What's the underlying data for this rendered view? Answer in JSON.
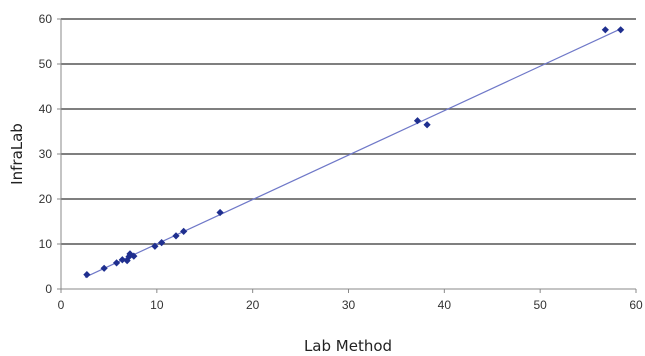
{
  "chart_data": {
    "type": "scatter",
    "title": "",
    "xlabel": "Lab Method",
    "ylabel": "InfraLab",
    "xlim": [
      0,
      60
    ],
    "ylim": [
      0,
      60
    ],
    "xticks": [
      0,
      10,
      20,
      30,
      40,
      50,
      60
    ],
    "yticks": [
      0,
      10,
      20,
      30,
      40,
      50,
      60
    ],
    "grid": "horizontal",
    "legend": "none",
    "series": [
      {
        "points": [
          [
            2.7,
            3.2
          ],
          [
            4.5,
            4.6
          ],
          [
            5.8,
            5.8
          ],
          [
            6.4,
            6.5
          ],
          [
            6.9,
            6.3
          ],
          [
            7.1,
            7.2
          ],
          [
            7.2,
            7.8
          ],
          [
            7.6,
            7.3
          ],
          [
            9.8,
            9.5
          ],
          [
            10.5,
            10.3
          ],
          [
            12.0,
            11.8
          ],
          [
            12.8,
            12.8
          ],
          [
            16.6,
            17.0
          ],
          [
            37.2,
            37.4
          ],
          [
            38.2,
            36.5
          ],
          [
            56.8,
            57.6
          ],
          [
            58.4,
            57.6
          ]
        ]
      }
    ],
    "trendline": {
      "x": [
        2.5,
        58.5
      ],
      "y": [
        2.6,
        57.9
      ]
    },
    "colors": {
      "marker": "#1f2f8f",
      "trendline": "#6f78c8",
      "grid": "#555555",
      "axis": "#888888"
    }
  }
}
